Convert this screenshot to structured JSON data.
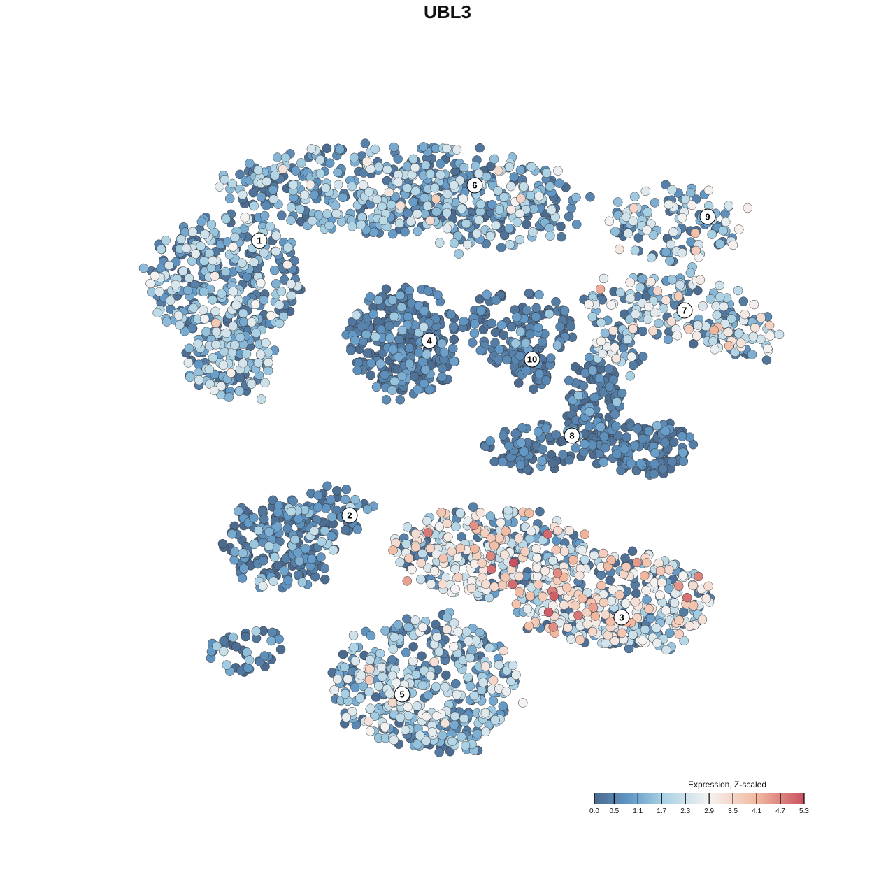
{
  "chart_data": {
    "type": "scatter",
    "title": "UBL3",
    "xlabel": "",
    "ylabel": "",
    "axes_visible": false,
    "grid": false,
    "legend": {
      "title": "Expression, Z-scaled",
      "placement": "bottom-right",
      "range": [
        0.0,
        5.3
      ],
      "ticks": [
        "0.0",
        "0.5",
        "1.1",
        "1.7",
        "2.3",
        "2.9",
        "3.5",
        "4.1",
        "4.7",
        "5.3"
      ],
      "colorscale": [
        {
          "value": 0.0,
          "color": "#4b6a8e"
        },
        {
          "value": 0.9,
          "color": "#6399c7"
        },
        {
          "value": 1.7,
          "color": "#a6cfe3"
        },
        {
          "value": 2.9,
          "color": "#f5f3f2"
        },
        {
          "value": 4.1,
          "color": "#f2b9a0"
        },
        {
          "value": 5.3,
          "color": "#c8515f"
        }
      ]
    },
    "clusters": [
      {
        "label": "1",
        "label_pos": [
          -26.9,
          29.6
        ],
        "blobs": [
          [
            -32,
            24,
            11,
            9,
            350
          ],
          [
            -31,
            12,
            6,
            5,
            120
          ]
        ],
        "mean_expr": 1.4,
        "sd_expr": 0.8
      },
      {
        "label": "2",
        "label_pos": [
          -14.0,
          -9.7
        ],
        "blobs": [
          [
            -24,
            -14,
            8,
            6,
            200
          ],
          [
            -17,
            -9,
            6,
            3,
            60
          ],
          [
            -29,
            -29,
            6,
            3,
            40
          ]
        ],
        "mean_expr": 0.5,
        "sd_expr": 0.8
      },
      {
        "label": "3",
        "label_pos": [
          24.9,
          -24.3
        ],
        "blobs": [
          [
            24,
            -22,
            14,
            7,
            400
          ],
          [
            6,
            -15,
            14,
            6,
            350
          ]
        ],
        "mean_expr": 2.4,
        "sd_expr": 1.0
      },
      {
        "label": "4",
        "label_pos": [
          -2.6,
          15.3
        ],
        "blobs": [
          [
            -6,
            15,
            8,
            8,
            300
          ]
        ],
        "mean_expr": 0.4,
        "sd_expr": 0.6
      },
      {
        "label": "5",
        "label_pos": [
          -6.5,
          -35.3
        ],
        "blobs": [
          [
            -3,
            -34,
            13,
            10,
            450
          ]
        ],
        "mean_expr": 1.5,
        "sd_expr": 0.8
      },
      {
        "label": "6",
        "label_pos": [
          3.9,
          37.5
        ],
        "blobs": [
          [
            -8,
            37,
            25,
            6,
            450
          ],
          [
            6,
            34,
            14,
            6,
            150
          ]
        ],
        "mean_expr": 1.3,
        "sd_expr": 0.8
      },
      {
        "label": "7",
        "label_pos": [
          33.9,
          19.6
        ],
        "blobs": [
          [
            32,
            20,
            12,
            5,
            150
          ],
          [
            42,
            16,
            6,
            3,
            60
          ],
          [
            24,
            14,
            4,
            3,
            40
          ]
        ],
        "mean_expr": 1.7,
        "sd_expr": 0.9
      },
      {
        "label": "8",
        "label_pos": [
          17.8,
          1.7
        ],
        "blobs": [
          [
            21,
            6,
            4,
            7,
            120
          ],
          [
            28,
            0,
            7,
            4,
            120
          ],
          [
            12,
            0,
            8,
            3,
            80
          ]
        ],
        "mean_expr": 0.3,
        "sd_expr": 0.5
      },
      {
        "label": "9",
        "label_pos": [
          37.2,
          33.0
        ],
        "blobs": [
          [
            33,
            32,
            10,
            5,
            120
          ]
        ],
        "mean_expr": 1.6,
        "sd_expr": 0.8
      },
      {
        "label": "10",
        "label_pos": [
          12.1,
          12.6
        ],
        "blobs": [
          [
            10,
            17,
            8,
            5,
            120
          ],
          [
            12,
            12,
            3,
            4,
            50
          ]
        ],
        "mean_expr": 0.3,
        "sd_expr": 0.5
      }
    ]
  }
}
